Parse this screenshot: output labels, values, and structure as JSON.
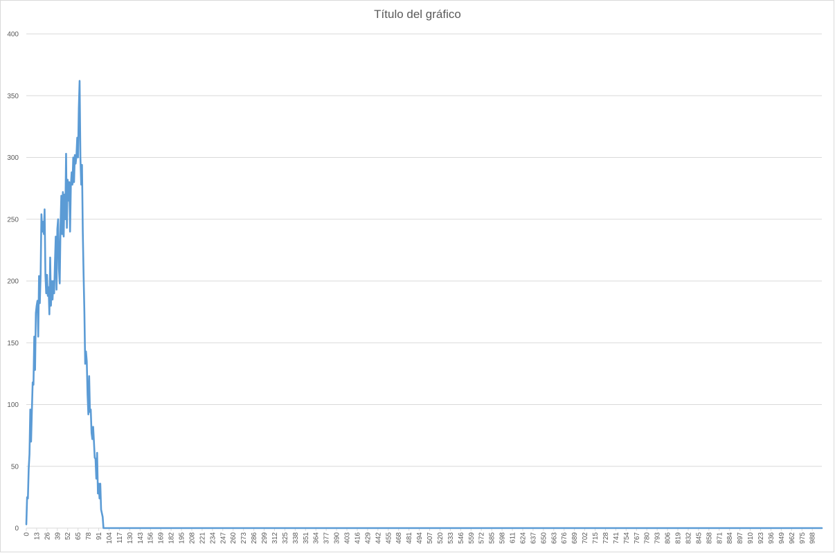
{
  "chart_data": {
    "type": "line",
    "title": "Título del gráfico",
    "xlabel": "",
    "ylabel": "",
    "ylim": [
      0,
      400
    ],
    "y_ticks": [
      0,
      50,
      100,
      150,
      200,
      250,
      300,
      350,
      400
    ],
    "x_range": [
      0,
      1000
    ],
    "x_ticks": [
      0,
      13,
      26,
      39,
      52,
      65,
      78,
      91,
      104,
      117,
      130,
      143,
      156,
      169,
      182,
      195,
      208,
      221,
      234,
      247,
      260,
      273,
      286,
      299,
      312,
      325,
      338,
      351,
      364,
      377,
      390,
      403,
      416,
      429,
      442,
      455,
      468,
      481,
      494,
      507,
      520,
      533,
      546,
      559,
      572,
      585,
      598,
      611,
      624,
      637,
      650,
      663,
      676,
      689,
      702,
      715,
      728,
      741,
      754,
      767,
      780,
      793,
      806,
      819,
      832,
      845,
      858,
      871,
      884,
      897,
      910,
      923,
      936,
      949,
      962,
      975,
      988
    ],
    "grid": true,
    "legend": "none",
    "color": "#5b9bd5",
    "series": [
      {
        "x": [
          0,
          1,
          2,
          3,
          4,
          5,
          6,
          7,
          8,
          9,
          10,
          11,
          12,
          13,
          14,
          15,
          16,
          17,
          18,
          19,
          20,
          21,
          22,
          23,
          24,
          25,
          26,
          27,
          28,
          29,
          30,
          31,
          32,
          33,
          34,
          35,
          36,
          37,
          38,
          39,
          40,
          41,
          42,
          43,
          44,
          45,
          46,
          47,
          48,
          49,
          50,
          51,
          52,
          53,
          54,
          55,
          56,
          57,
          58,
          59,
          60,
          61,
          62,
          63,
          64,
          65,
          66,
          67,
          68,
          69,
          70,
          71,
          72,
          73,
          74,
          75,
          76,
          77,
          78,
          79,
          80,
          81,
          82,
          83,
          84,
          85,
          86,
          87,
          88,
          89,
          90,
          91,
          92,
          93,
          94,
          95,
          96,
          97,
          98,
          99,
          100,
          101,
          102,
          103,
          104,
          105,
          106,
          107,
          108,
          109,
          110,
          1000
        ],
        "values": [
          3,
          25,
          24,
          48,
          60,
          96,
          70,
          95,
          118,
          116,
          155,
          128,
          174,
          180,
          184,
          155,
          204,
          182,
          205,
          254,
          240,
          248,
          238,
          258,
          205,
          190,
          205,
          188,
          195,
          173,
          219,
          180,
          200,
          185,
          200,
          190,
          215,
          236,
          193,
          242,
          250,
          210,
          198,
          245,
          269,
          238,
          272,
          236,
          270,
          250,
          303,
          243,
          282,
          265,
          280,
          240,
          277,
          288,
          278,
          300,
          280,
          302,
          295,
          301,
          316,
          300,
          340,
          362,
          300,
          278,
          294,
          240,
          205,
          175,
          133,
          143,
          135,
          108,
          92,
          123,
          94,
          96,
          77,
          72,
          82,
          70,
          57,
          56,
          40,
          61,
          28,
          36,
          24,
          36,
          15,
          12,
          9,
          0,
          0,
          0,
          0,
          0,
          0,
          0,
          0,
          0,
          0,
          0,
          0,
          0,
          0,
          0
        ]
      }
    ]
  }
}
